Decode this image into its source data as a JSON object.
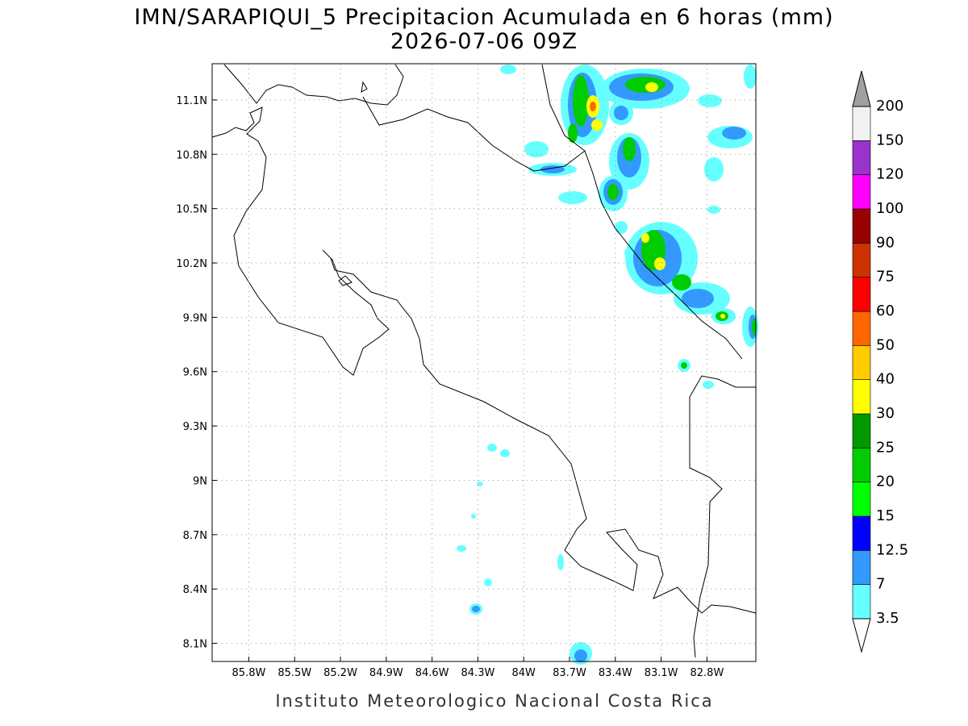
{
  "header": {
    "title": "IMN/SARAPIQUI_5 Precipitacion Acumulada en 6 horas (mm)",
    "subtitle": "2026-07-06 09Z"
  },
  "map": {
    "lonlim": [
      -86.04,
      -82.48
    ],
    "latlim": [
      8.0,
      11.3
    ],
    "lon_ticks": [
      {
        "value": -85.8,
        "label": "85.8W"
      },
      {
        "value": -85.5,
        "label": "85.5W"
      },
      {
        "value": -85.2,
        "label": "85.2W"
      },
      {
        "value": -84.9,
        "label": "84.9W"
      },
      {
        "value": -84.6,
        "label": "84.6W"
      },
      {
        "value": -84.3,
        "label": "84.3W"
      },
      {
        "value": -84.0,
        "label": "84W"
      },
      {
        "value": -83.7,
        "label": "83.7W"
      },
      {
        "value": -83.4,
        "label": "83.4W"
      },
      {
        "value": -83.1,
        "label": "83.1W"
      },
      {
        "value": -82.8,
        "label": "82.8W"
      }
    ],
    "lat_ticks": [
      {
        "value": 8.1,
        "label": "8.1N"
      },
      {
        "value": 8.4,
        "label": "8.4N"
      },
      {
        "value": 8.7,
        "label": "8.7N"
      },
      {
        "value": 9.0,
        "label": "9N"
      },
      {
        "value": 9.3,
        "label": "9.3N"
      },
      {
        "value": 9.6,
        "label": "9.6N"
      },
      {
        "value": 9.9,
        "label": "9.9N"
      },
      {
        "value": 10.2,
        "label": "10.2N"
      },
      {
        "value": 10.5,
        "label": "10.5N"
      },
      {
        "value": 10.8,
        "label": "10.8N"
      },
      {
        "value": 11.1,
        "label": "11.1N"
      }
    ],
    "grid": true,
    "colorbar": {
      "levels": [
        3.5,
        7,
        12.5,
        15,
        20,
        25,
        30,
        40,
        50,
        60,
        75,
        90,
        100,
        120,
        150,
        200
      ],
      "colors": [
        "#66ffff",
        "#3399ff",
        "#0000ff",
        "#00ff00",
        "#00cc00",
        "#009900",
        "#ffff00",
        "#ffcc00",
        "#ff6600",
        "#ff0000",
        "#cc3300",
        "#990000",
        "#ff00ff",
        "#9933cc",
        "#f2f2f2"
      ],
      "under_color": "#ffffff",
      "over_color": "#a0a0a0"
    }
  },
  "footer": "Instituto Meteorologico Nacional Costa Rica"
}
